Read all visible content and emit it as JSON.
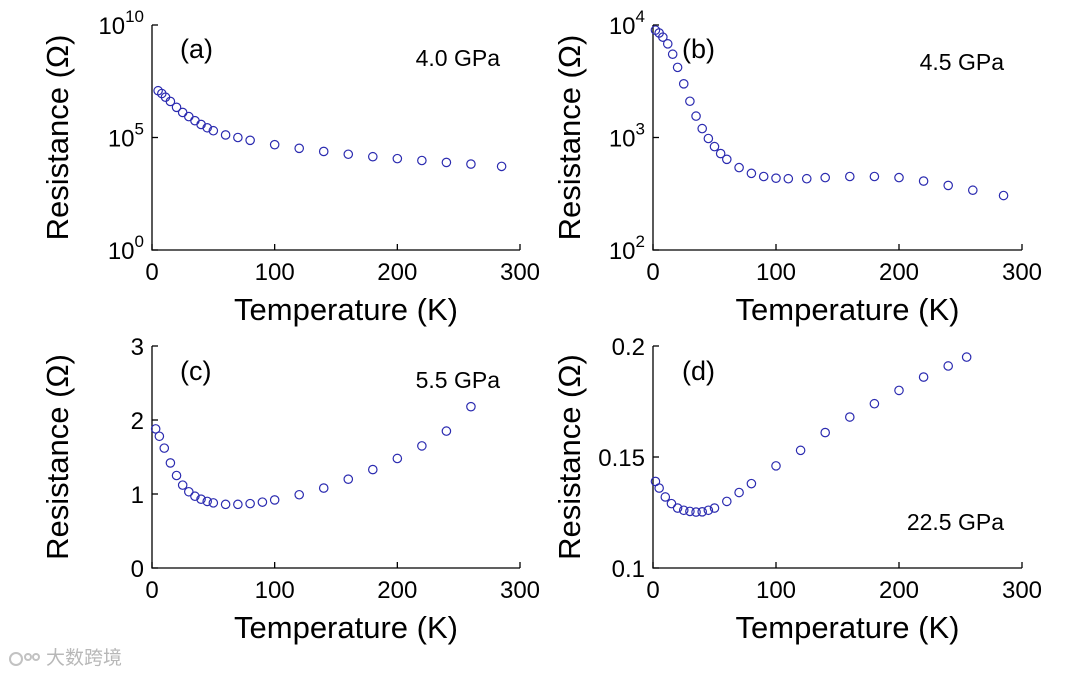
{
  "chart_data": [
    {
      "type": "scatter",
      "panel_label": "(a)",
      "annotation": "4.0 GPa",
      "xlabel": "Temperature (K)",
      "ylabel": "Resistance (Ω)",
      "yscale": "log",
      "xlim": [
        0,
        300
      ],
      "ylim": [
        1,
        10000000000
      ],
      "xticks": [
        0,
        100,
        200,
        300
      ],
      "xtick_labels": [
        "0",
        "100",
        "200",
        "300"
      ],
      "yticks": [
        1,
        100000,
        10000000000
      ],
      "ytick_labels": [
        {
          "base": "10",
          "exp": "0"
        },
        {
          "base": "10",
          "exp": "5"
        },
        {
          "base": "10",
          "exp": "10"
        }
      ],
      "marker_color": "#2b2bb0",
      "x": [
        5,
        8,
        11,
        15,
        20,
        25,
        30,
        35,
        40,
        45,
        50,
        60,
        70,
        80,
        100,
        120,
        140,
        160,
        180,
        200,
        220,
        240,
        260,
        285
      ],
      "y": [
        12000000,
        9000000,
        6200000,
        4000000,
        2200000,
        1300000,
        850000,
        560000,
        380000,
        270000,
        200000,
        130000,
        100000,
        75000,
        48000,
        33000,
        24000,
        18000,
        14000,
        11500,
        9500,
        7800,
        6600,
        5200
      ]
    },
    {
      "type": "scatter",
      "panel_label": "(b)",
      "annotation": "4.5 GPa",
      "xlabel": "Temperature (K)",
      "ylabel": "Resistance (Ω)",
      "yscale": "log",
      "xlim": [
        0,
        300
      ],
      "ylim": [
        100,
        10000
      ],
      "xticks": [
        0,
        100,
        200,
        300
      ],
      "xtick_labels": [
        "0",
        "100",
        "200",
        "300"
      ],
      "yticks": [
        100,
        1000,
        10000
      ],
      "ytick_labels": [
        {
          "base": "10",
          "exp": "2"
        },
        {
          "base": "10",
          "exp": "3"
        },
        {
          "base": "10",
          "exp": "4"
        }
      ],
      "marker_color": "#2b2bb0",
      "x": [
        2,
        5,
        8,
        12,
        16,
        20,
        25,
        30,
        35,
        40,
        45,
        50,
        55,
        60,
        70,
        80,
        90,
        100,
        110,
        125,
        140,
        160,
        180,
        200,
        220,
        240,
        260,
        285
      ],
      "y": [
        9000,
        8500,
        7800,
        6800,
        5500,
        4200,
        3000,
        2100,
        1550,
        1200,
        980,
        830,
        720,
        640,
        540,
        480,
        450,
        435,
        430,
        430,
        440,
        450,
        450,
        440,
        410,
        375,
        340,
        305
      ]
    },
    {
      "type": "scatter",
      "panel_label": "(c)",
      "annotation": "5.5 GPa",
      "xlabel": "Temperature (K)",
      "ylabel": "Resistance (Ω)",
      "yscale": "linear",
      "xlim": [
        0,
        300
      ],
      "ylim": [
        0,
        3
      ],
      "xticks": [
        0,
        100,
        200,
        300
      ],
      "xtick_labels": [
        "0",
        "100",
        "200",
        "300"
      ],
      "yticks": [
        0,
        1,
        2,
        3
      ],
      "ytick_labels": [
        "0",
        "1",
        "2",
        "3"
      ],
      "marker_color": "#2b2bb0",
      "x": [
        3,
        6,
        10,
        15,
        20,
        25,
        30,
        35,
        40,
        45,
        50,
        60,
        70,
        80,
        90,
        100,
        120,
        140,
        160,
        180,
        200,
        220,
        240,
        260
      ],
      "y": [
        1.88,
        1.78,
        1.62,
        1.42,
        1.25,
        1.12,
        1.03,
        0.97,
        0.93,
        0.9,
        0.88,
        0.86,
        0.86,
        0.87,
        0.89,
        0.92,
        0.99,
        1.08,
        1.2,
        1.33,
        1.48,
        1.65,
        1.85,
        2.18
      ]
    },
    {
      "type": "scatter",
      "panel_label": "(d)",
      "annotation": "22.5 GPa",
      "xlabel": "Temperature (K)",
      "ylabel": "Resistance (Ω)",
      "yscale": "linear",
      "xlim": [
        0,
        300
      ],
      "ylim": [
        0.1,
        0.2
      ],
      "xticks": [
        0,
        100,
        200,
        300
      ],
      "xtick_labels": [
        "0",
        "100",
        "200",
        "300"
      ],
      "yticks": [
        0.1,
        0.15,
        0.2
      ],
      "ytick_labels": [
        "0.1",
        "0.15",
        "0.2"
      ],
      "marker_color": "#2b2bb0",
      "x": [
        2,
        5,
        10,
        15,
        20,
        25,
        30,
        35,
        40,
        45,
        50,
        60,
        70,
        80,
        100,
        120,
        140,
        160,
        180,
        200,
        220,
        240,
        255
      ],
      "y": [
        0.139,
        0.136,
        0.132,
        0.129,
        0.127,
        0.126,
        0.1255,
        0.1252,
        0.1253,
        0.126,
        0.127,
        0.13,
        0.134,
        0.138,
        0.146,
        0.153,
        0.161,
        0.168,
        0.174,
        0.18,
        0.186,
        0.191,
        0.195
      ]
    }
  ],
  "watermark": "大数跨境"
}
